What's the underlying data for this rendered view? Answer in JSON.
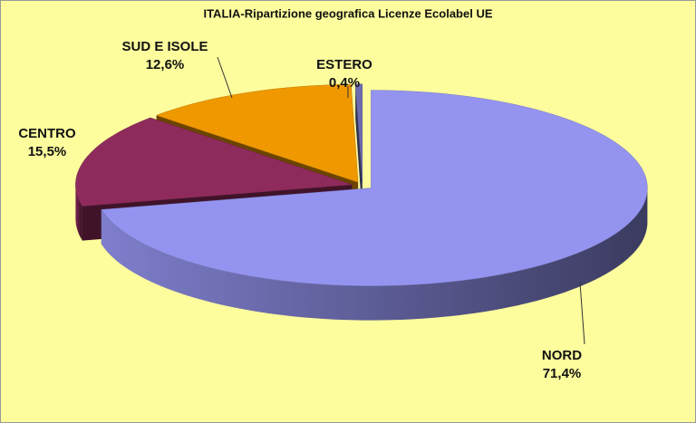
{
  "chart_data": {
    "type": "pie3d",
    "title": "ITALIA-Ripartizione geografica Licenze Ecolabel UE",
    "categories": [
      "NORD",
      "CENTRO",
      "SUD E ISOLE",
      "ESTERO"
    ],
    "values": [
      71.4,
      15.5,
      12.6,
      0.4
    ],
    "value_labels": [
      "71,4%",
      "15,5%",
      "12,6%",
      "0,4%"
    ],
    "colors": [
      "#9494f0",
      "#8e2b5c",
      "#f09800",
      "#6c6cb0"
    ]
  }
}
